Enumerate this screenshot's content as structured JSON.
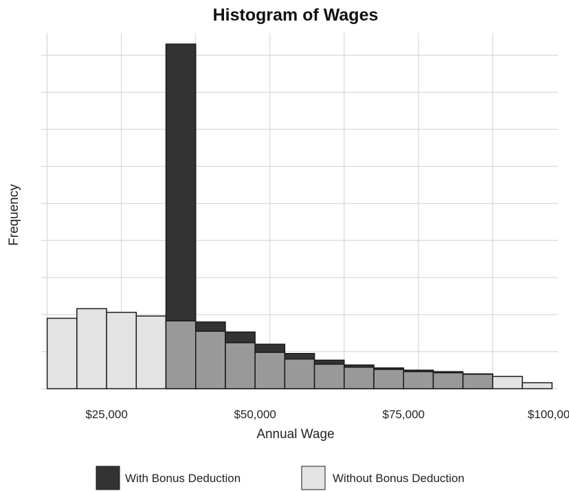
{
  "colors": {
    "with_bonus": "#333333",
    "without_bonus": "#e3e3e3",
    "overlap": "#999999",
    "grid": "#cfcfcf"
  },
  "chart_data": {
    "type": "bar",
    "title": "Histogram of Wages",
    "xlabel": "Annual Wage",
    "ylabel": "Frequency",
    "xlim": [
      14000,
      101000
    ],
    "ylim": [
      0,
      9.6
    ],
    "x_ticks": [
      25000,
      50000,
      75000,
      100000
    ],
    "x_tick_labels": [
      "$25,000",
      "$50,000",
      "$75,000",
      "$100,000"
    ],
    "y_tick_labels_shown": false,
    "grid": true,
    "legend_position": "bottom",
    "bin_width": 5000,
    "bin_starts": [
      15000,
      20000,
      25000,
      30000,
      35000,
      40000,
      45000,
      50000,
      55000,
      60000,
      65000,
      70000,
      75000,
      80000,
      85000,
      90000,
      95000
    ],
    "series": [
      {
        "name": "With Bonus Deduction",
        "color": "#333333",
        "values": [
          0,
          0,
          0,
          0,
          9.3,
          1.8,
          1.53,
          1.2,
          0.95,
          0.77,
          0.64,
          0.56,
          0.5,
          0.46,
          0.4,
          0,
          0
        ]
      },
      {
        "name": "Without Bonus Deduction",
        "color": "#e3e3e3",
        "values": [
          1.9,
          2.16,
          2.06,
          1.96,
          1.83,
          1.55,
          1.24,
          0.98,
          0.8,
          0.66,
          0.58,
          0.52,
          0.46,
          0.43,
          0.39,
          0.33,
          0.16
        ]
      }
    ]
  }
}
